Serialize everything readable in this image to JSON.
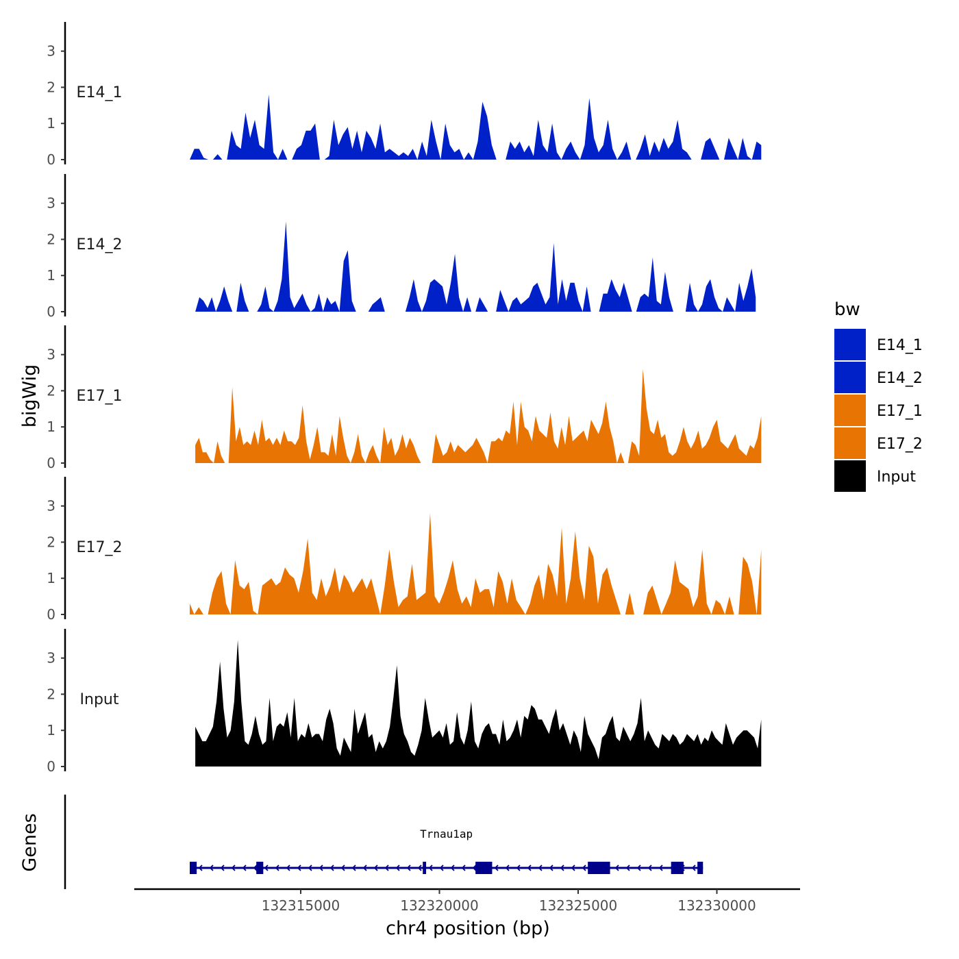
{
  "chart_data": {
    "type": "area",
    "title": "",
    "xlabel": "chr4 position (bp)",
    "ylabel": "bigWig",
    "genes_label": "Genes",
    "xlim": [
      132309000,
      132333000
    ],
    "ylim": [
      0,
      3.6
    ],
    "x_ticks": [
      {
        "value": 132315000,
        "label": "132315000"
      },
      {
        "value": 132320000,
        "label": "132320000"
      },
      {
        "value": 132325000,
        "label": "132325000"
      },
      {
        "value": 132330000,
        "label": "132330000"
      }
    ],
    "y_ticks": [
      0,
      1,
      2,
      3
    ],
    "legend": {
      "title": "bw",
      "position": "right",
      "entries": [
        {
          "name": "E14_1",
          "color": "#0020c8"
        },
        {
          "name": "E14_2",
          "color": "#0020c8"
        },
        {
          "name": "E17_1",
          "color": "#e87404"
        },
        {
          "name": "E17_2",
          "color": "#e87404"
        },
        {
          "name": "Input",
          "color": "#000000"
        }
      ]
    },
    "series": [
      {
        "name": "E14_1",
        "color": "#0020c8",
        "x_start": 132311000,
        "x_end": 132331600,
        "values": [
          0.0,
          0.3,
          0.3,
          0.05,
          0.0,
          0.0,
          0.15,
          0.0,
          0.0,
          0.8,
          0.4,
          0.3,
          1.3,
          0.6,
          1.1,
          0.4,
          0.3,
          1.8,
          0.2,
          0.0,
          0.3,
          0.0,
          0.0,
          0.3,
          0.4,
          0.8,
          0.8,
          1.0,
          0.0,
          0.0,
          0.1,
          1.1,
          0.4,
          0.7,
          0.9,
          0.3,
          0.8,
          0.2,
          0.8,
          0.6,
          0.3,
          1.0,
          0.2,
          0.3,
          0.2,
          0.1,
          0.2,
          0.1,
          0.3,
          0.0,
          0.5,
          0.1,
          1.1,
          0.5,
          0.0,
          1.0,
          0.4,
          0.2,
          0.3,
          0.0,
          0.2,
          0.0,
          0.5,
          1.6,
          1.2,
          0.4,
          0.0,
          0.0,
          0.0,
          0.5,
          0.3,
          0.5,
          0.2,
          0.4,
          0.1,
          1.1,
          0.4,
          0.2,
          1.0,
          0.2,
          0.0,
          0.3,
          0.5,
          0.2,
          0.0,
          0.4,
          1.7,
          0.6,
          0.2,
          0.4,
          1.1,
          0.3,
          0.0,
          0.2,
          0.5,
          0.0,
          0.0,
          0.3,
          0.7,
          0.1,
          0.5,
          0.2,
          0.6,
          0.3,
          0.5,
          1.1,
          0.3,
          0.2,
          0.0,
          0.0,
          0.0,
          0.5,
          0.6,
          0.3,
          0.0,
          0.0,
          0.6,
          0.3,
          0.0,
          0.6,
          0.1,
          0.0,
          0.5,
          0.4
        ]
      },
      {
        "name": "E14_2",
        "color": "#0020c8",
        "x_start": 132311200,
        "x_end": 132331400,
        "values": [
          0.0,
          0.4,
          0.3,
          0.1,
          0.4,
          0.0,
          0.3,
          0.7,
          0.3,
          0.0,
          0.0,
          0.8,
          0.3,
          0.0,
          0.0,
          0.0,
          0.2,
          0.7,
          0.1,
          0.0,
          0.3,
          0.9,
          2.5,
          0.4,
          0.1,
          0.3,
          0.5,
          0.2,
          0.0,
          0.1,
          0.5,
          0.0,
          0.4,
          0.2,
          0.3,
          0.0,
          1.4,
          1.7,
          0.3,
          0.0,
          0.0,
          0.0,
          0.0,
          0.2,
          0.3,
          0.4,
          0.0,
          0.0,
          0.0,
          0.0,
          0.0,
          0.0,
          0.4,
          0.9,
          0.3,
          0.0,
          0.3,
          0.8,
          0.9,
          0.8,
          0.7,
          0.2,
          0.8,
          1.6,
          0.4,
          0.0,
          0.4,
          0.0,
          0.0,
          0.4,
          0.2,
          0.0,
          0.0,
          0.0,
          0.6,
          0.3,
          0.0,
          0.3,
          0.4,
          0.2,
          0.3,
          0.4,
          0.7,
          0.8,
          0.5,
          0.2,
          0.4,
          1.9,
          0.2,
          0.9,
          0.3,
          0.8,
          0.8,
          0.3,
          0.0,
          0.7,
          0.0,
          0.0,
          0.0,
          0.5,
          0.5,
          0.9,
          0.6,
          0.4,
          0.8,
          0.4,
          0.0,
          0.0,
          0.4,
          0.5,
          0.4,
          1.5,
          0.3,
          0.2,
          1.1,
          0.4,
          0.0,
          0.0,
          0.0,
          0.0,
          0.8,
          0.2,
          0.0,
          0.2,
          0.7,
          0.9,
          0.4,
          0.1,
          0.0,
          0.4,
          0.2,
          0.0,
          0.8,
          0.3,
          0.7,
          1.2,
          0.4
        ]
      },
      {
        "name": "E17_1",
        "color": "#e87404",
        "x_start": 132311200,
        "x_end": 132331600,
        "values": [
          0.5,
          0.7,
          0.3,
          0.3,
          0.1,
          0.0,
          0.6,
          0.2,
          0.0,
          0.0,
          2.1,
          0.6,
          1.0,
          0.5,
          0.6,
          0.5,
          0.9,
          0.5,
          1.2,
          0.6,
          0.7,
          0.5,
          0.7,
          0.5,
          0.9,
          0.6,
          0.6,
          0.5,
          0.7,
          1.6,
          0.6,
          0.1,
          0.5,
          1.0,
          0.3,
          0.3,
          0.2,
          0.8,
          0.2,
          1.3,
          0.7,
          0.2,
          0.0,
          0.3,
          0.8,
          0.2,
          0.0,
          0.3,
          0.5,
          0.2,
          0.0,
          1.0,
          0.5,
          0.7,
          0.2,
          0.4,
          0.8,
          0.4,
          0.7,
          0.5,
          0.2,
          0.0,
          0.0,
          0.0,
          0.0,
          0.8,
          0.5,
          0.2,
          0.3,
          0.6,
          0.3,
          0.5,
          0.4,
          0.3,
          0.4,
          0.5,
          0.7,
          0.5,
          0.3,
          0.0,
          0.6,
          0.6,
          0.7,
          0.6,
          0.9,
          0.8,
          1.7,
          0.5,
          1.7,
          1.0,
          0.9,
          0.6,
          1.3,
          0.9,
          0.8,
          0.7,
          1.4,
          0.6,
          0.4,
          1.0,
          0.5,
          1.3,
          0.6,
          0.7,
          0.8,
          0.9,
          0.6,
          1.2,
          1.0,
          0.8,
          1.1,
          1.7,
          1.0,
          0.6,
          0.0,
          0.3,
          0.0,
          0.0,
          0.6,
          0.5,
          0.2,
          2.6,
          1.5,
          0.9,
          0.8,
          1.2,
          0.7,
          0.8,
          0.3,
          0.2,
          0.3,
          0.6,
          1.0,
          0.6,
          0.4,
          0.6,
          0.9,
          0.4,
          0.5,
          0.7,
          1.0,
          1.2,
          0.6,
          0.5,
          0.4,
          0.6,
          0.8,
          0.4,
          0.3,
          0.2,
          0.5,
          0.4,
          0.7,
          1.3
        ]
      },
      {
        "name": "E17_2",
        "color": "#e87404",
        "x_start": 132311000,
        "x_end": 132331600,
        "values": [
          0.3,
          0.0,
          0.2,
          0.0,
          0.0,
          0.6,
          1.0,
          1.2,
          0.3,
          0.0,
          1.5,
          0.8,
          0.7,
          0.9,
          0.1,
          0.0,
          0.8,
          0.9,
          1.0,
          0.8,
          0.9,
          1.3,
          1.1,
          1.0,
          0.6,
          1.2,
          2.1,
          0.6,
          0.4,
          1.0,
          0.5,
          0.8,
          1.3,
          0.6,
          1.1,
          0.9,
          0.6,
          0.8,
          1.0,
          0.7,
          1.0,
          0.5,
          0.0,
          0.8,
          1.8,
          0.9,
          0.2,
          0.4,
          0.5,
          1.4,
          0.4,
          0.5,
          0.6,
          2.8,
          0.5,
          0.3,
          0.6,
          1.0,
          1.5,
          0.7,
          0.3,
          0.5,
          0.2,
          1.0,
          0.6,
          0.7,
          0.7,
          0.2,
          1.2,
          0.9,
          0.3,
          1.0,
          0.4,
          0.2,
          0.0,
          0.3,
          0.8,
          1.1,
          0.4,
          1.4,
          1.1,
          0.5,
          2.4,
          0.3,
          1.0,
          2.3,
          1.0,
          0.4,
          1.9,
          1.6,
          0.3,
          1.1,
          1.3,
          0.8,
          0.4,
          0.0,
          0.0,
          0.6,
          0.0,
          0.0,
          0.0,
          0.6,
          0.8,
          0.4,
          0.0,
          0.3,
          0.6,
          1.5,
          0.9,
          0.8,
          0.7,
          0.2,
          0.5,
          1.8,
          0.3,
          0.0,
          0.4,
          0.3,
          0.0,
          0.5,
          0.0,
          0.0,
          1.6,
          1.4,
          0.9,
          0.0,
          1.8
        ]
      },
      {
        "name": "Input",
        "color": "#000000",
        "x_start": 132311200,
        "x_end": 132331600,
        "values": [
          1.1,
          0.9,
          0.7,
          0.7,
          0.9,
          1.1,
          1.8,
          2.9,
          1.6,
          0.8,
          1.0,
          1.8,
          3.5,
          1.8,
          0.7,
          0.6,
          0.9,
          1.4,
          0.9,
          0.6,
          0.7,
          1.9,
          0.7,
          1.1,
          1.2,
          1.1,
          1.5,
          0.8,
          1.9,
          0.7,
          0.9,
          0.8,
          1.2,
          0.8,
          0.9,
          0.9,
          0.7,
          1.3,
          1.6,
          1.2,
          0.5,
          0.3,
          0.8,
          0.6,
          0.4,
          1.6,
          0.9,
          1.2,
          1.5,
          0.8,
          0.9,
          0.4,
          0.7,
          0.5,
          0.7,
          1.1,
          1.9,
          2.8,
          1.4,
          0.9,
          0.7,
          0.4,
          0.3,
          0.6,
          1.0,
          1.9,
          1.3,
          0.8,
          0.9,
          1.0,
          0.8,
          1.2,
          0.6,
          0.7,
          1.5,
          0.8,
          0.6,
          1.0,
          1.8,
          0.7,
          0.5,
          0.9,
          1.1,
          1.2,
          0.9,
          0.9,
          0.6,
          1.3,
          0.7,
          0.8,
          1.0,
          1.3,
          0.8,
          1.4,
          1.3,
          1.7,
          1.6,
          1.3,
          1.3,
          1.1,
          0.9,
          1.3,
          1.6,
          1.0,
          1.2,
          0.9,
          0.6,
          1.0,
          0.8,
          0.4,
          1.4,
          0.9,
          0.7,
          0.5,
          0.2,
          0.8,
          0.9,
          1.2,
          1.4,
          0.8,
          0.7,
          1.1,
          0.9,
          0.7,
          0.9,
          1.2,
          1.9,
          0.7,
          1.0,
          0.8,
          0.6,
          0.5,
          0.9,
          0.8,
          0.7,
          0.9,
          0.8,
          0.6,
          0.7,
          0.9,
          0.8,
          0.7,
          0.9,
          0.6,
          0.8,
          0.7,
          1.0,
          0.8,
          0.7,
          0.6,
          1.2,
          0.9,
          0.6,
          0.8,
          0.9,
          1.0,
          1.0,
          0.9,
          0.8,
          0.5,
          1.3
        ]
      }
    ],
    "gene": {
      "name": "Trnau1ap",
      "strand": "-",
      "start": 132311000,
      "end": 132329500,
      "color": "#00008b",
      "exons": [
        {
          "start": 132311000,
          "end": 132311250
        },
        {
          "start": 132313400,
          "end": 132313650
        },
        {
          "start": 132319400,
          "end": 132319520
        },
        {
          "start": 132321300,
          "end": 132321900
        },
        {
          "start": 132325350,
          "end": 132326150
        },
        {
          "start": 132328350,
          "end": 132328800
        },
        {
          "start": 132329300,
          "end": 132329500
        }
      ]
    }
  }
}
